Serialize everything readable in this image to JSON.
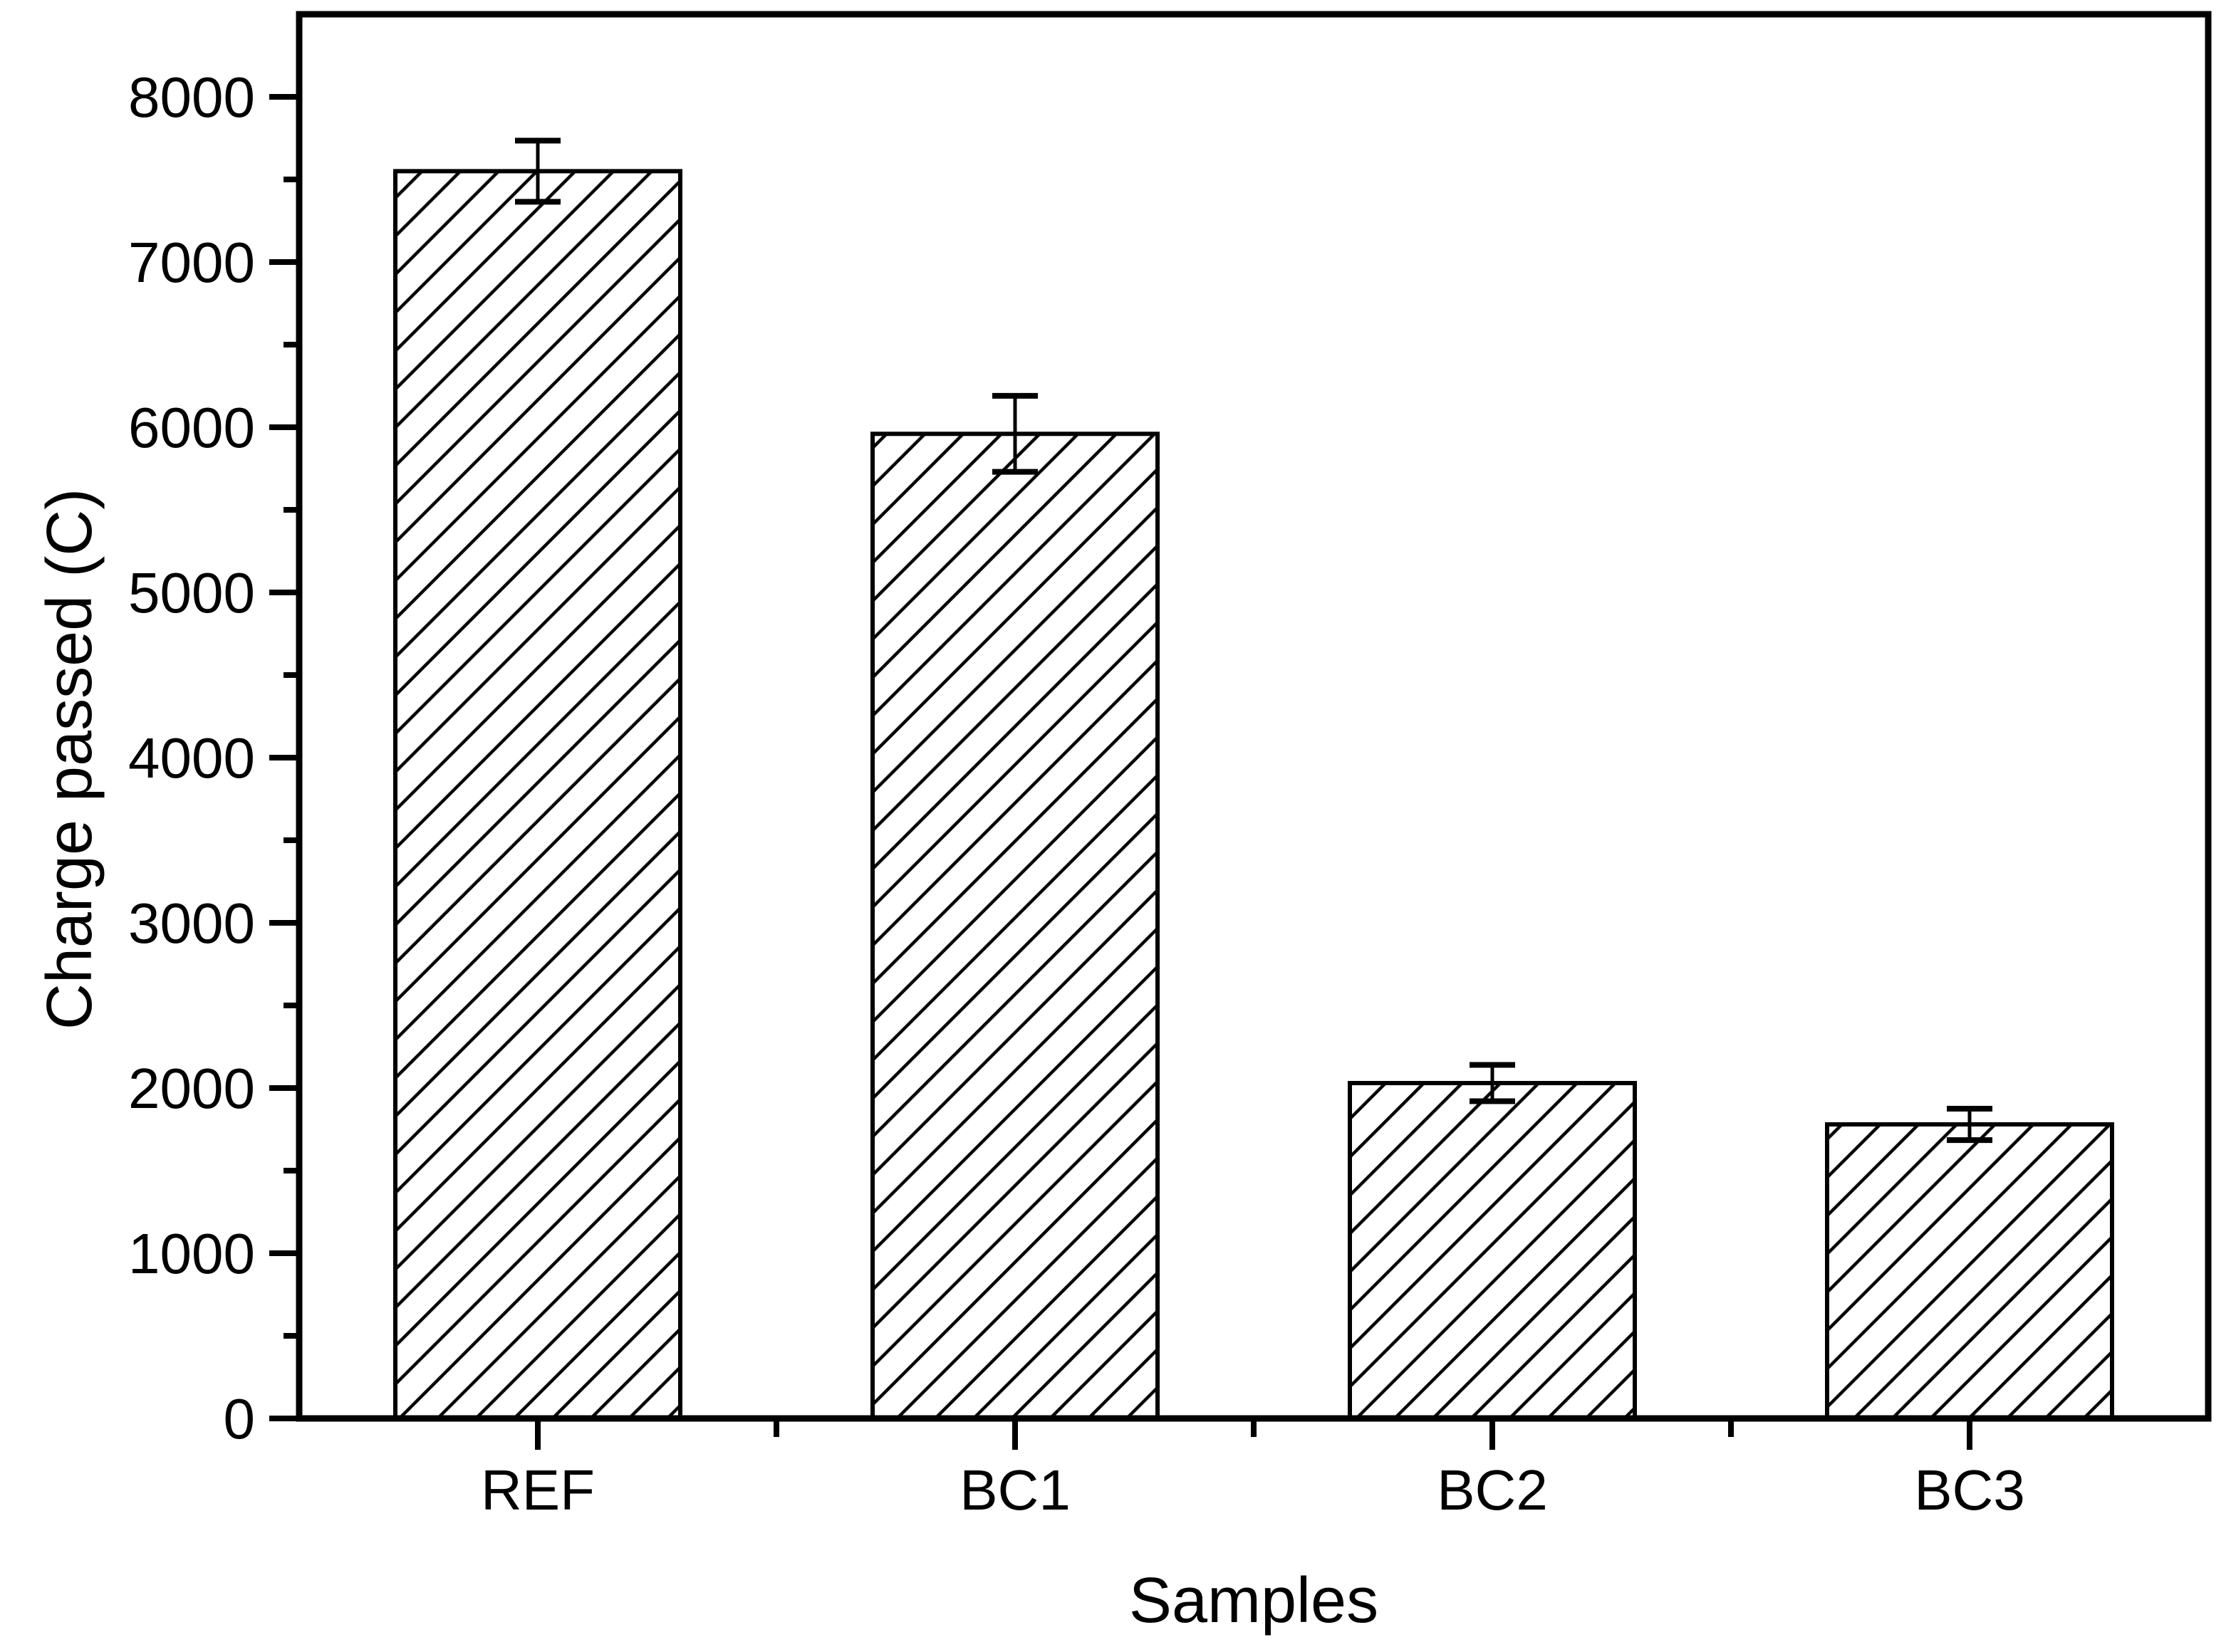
{
  "chart_data": {
    "type": "bar",
    "title": "",
    "categories": [
      "REF",
      "BC1",
      "BC2",
      "BC3"
    ],
    "values": [
      7550,
      5960,
      2030,
      1780
    ],
    "errors": [
      185,
      230,
      110,
      95
    ],
    "xlabel": "Samples",
    "ylabel": "Charge passed (C)",
    "ylim": [
      0,
      8500
    ],
    "y_major_step": 1000,
    "y_minor_step": 500,
    "y_tick_labels": [
      "0",
      "1000",
      "2000",
      "3000",
      "4000",
      "5000",
      "6000",
      "7000",
      "8000"
    ],
    "grid": false,
    "legend": "none",
    "bar_style": "diagonal-hatch",
    "colors": {
      "foreground": "#000000",
      "background": "#ffffff"
    }
  }
}
